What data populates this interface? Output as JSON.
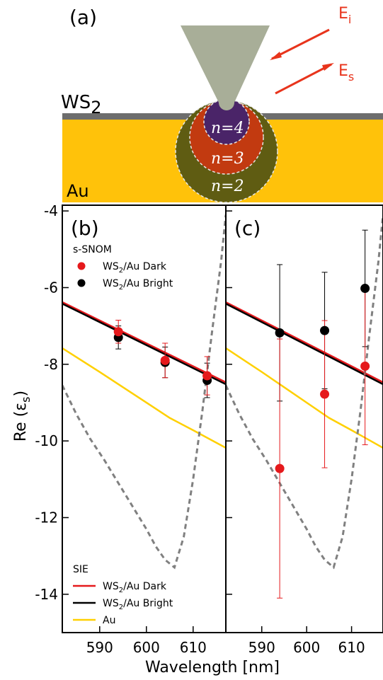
{
  "colors": {
    "dark": "#e5191c",
    "bright": "#000000",
    "au_line": "#ffd000",
    "dashed": "#808080",
    "gold": "#ffc20a",
    "ws2_layer": "#6d6d6d",
    "tip": "#a8ae98",
    "incident": "#e8341c"
  },
  "schematic": {
    "panel_label": "(a)",
    "ws2_label": "WS",
    "ws2_sub": "2",
    "au_label": "Au",
    "ei_label": "E",
    "ei_sub": "i",
    "es_label": "E",
    "es_sub": "s",
    "regions": [
      {
        "label": "n=4",
        "color": "#4a2468"
      },
      {
        "label": "n=3",
        "color": "#c23a10"
      },
      {
        "label": "n=2",
        "color": "#5f5c12"
      }
    ]
  },
  "chart_data": [
    {
      "panel": "(b)",
      "type": "line",
      "xlabel": "Wavelength [nm]",
      "ylabel": "Re (εs)",
      "ylabel_main": "Re (ε",
      "ylabel_sub": "s",
      "ylabel_close": ")",
      "xlim": [
        582,
        617
      ],
      "ylim": [
        -15,
        -3.85
      ],
      "xticks": [
        590,
        600,
        610
      ],
      "yticks": [
        -4,
        -6,
        -8,
        -10,
        -12,
        -14
      ],
      "lines": [
        {
          "name": "WS2/Au Dark",
          "color": "#e5191c",
          "x": [
            582,
            617
          ],
          "y": [
            -6.38,
            -8.47
          ]
        },
        {
          "name": "WS2/Au Bright",
          "color": "#000000",
          "x": [
            582,
            617
          ],
          "y": [
            -6.42,
            -8.52
          ]
        },
        {
          "name": "Au",
          "color": "#ffd000",
          "x": [
            582,
            590,
            595,
            600,
            605,
            610,
            617
          ],
          "y": [
            -7.58,
            -8.2,
            -8.6,
            -9.0,
            -9.4,
            -9.72,
            -10.18
          ]
        },
        {
          "name": "dashed",
          "color": "#808080",
          "dashed": true,
          "x": [
            582,
            585,
            588,
            591,
            594,
            597,
            600,
            602,
            604,
            605,
            606,
            608,
            610,
            612,
            614,
            616,
            617
          ],
          "y": [
            -8.55,
            -9.3,
            -9.95,
            -10.5,
            -11.1,
            -11.7,
            -12.3,
            -12.75,
            -13.1,
            -13.2,
            -13.3,
            -12.5,
            -11.0,
            -9.2,
            -7.2,
            -5.3,
            -4.1
          ]
        }
      ],
      "points": [
        {
          "series": "WS2/Au Bright",
          "color": "#000000",
          "x": [
            594,
            604,
            613
          ],
          "y": [
            -7.3,
            -7.95,
            -8.42
          ],
          "err": [
            0.3,
            0.4,
            0.45
          ]
        },
        {
          "series": "WS2/Au Dark",
          "color": "#e5191c",
          "x": [
            594,
            604,
            613
          ],
          "y": [
            -7.15,
            -7.9,
            -8.3
          ],
          "err": [
            0.3,
            0.45,
            0.5
          ]
        }
      ],
      "legend_top": {
        "title": "s-SNOM",
        "items": [
          {
            "text": "WS",
            "sub": "2",
            "rest": "/Au Dark",
            "color": "#e5191c"
          },
          {
            "text": "WS",
            "sub": "2",
            "rest": "/Au Bright",
            "color": "#000000"
          }
        ]
      },
      "legend_bottom": {
        "title": "SIE",
        "items": [
          {
            "text": "WS",
            "sub": "2",
            "rest": "/Au Dark",
            "color": "#e5191c"
          },
          {
            "text": "WS",
            "sub": "2",
            "rest": "/Au Bright",
            "color": "#000000"
          },
          {
            "text": "Au",
            "sub": "",
            "rest": "",
            "color": "#ffd000"
          }
        ]
      }
    },
    {
      "panel": "(c)",
      "type": "line",
      "xlim": [
        582,
        617
      ],
      "ylim": [
        -15,
        -3.85
      ],
      "xticks": [
        590,
        600,
        610
      ],
      "lines": [
        {
          "name": "WS2/Au Dark",
          "color": "#e5191c",
          "x": [
            582,
            617
          ],
          "y": [
            -6.38,
            -8.47
          ]
        },
        {
          "name": "WS2/Au Bright",
          "color": "#000000",
          "x": [
            582,
            617
          ],
          "y": [
            -6.42,
            -8.52
          ]
        },
        {
          "name": "Au",
          "color": "#ffd000",
          "x": [
            582,
            590,
            595,
            600,
            605,
            610,
            617
          ],
          "y": [
            -7.58,
            -8.2,
            -8.6,
            -9.0,
            -9.4,
            -9.72,
            -10.18
          ]
        },
        {
          "name": "dashed",
          "color": "#808080",
          "dashed": true,
          "x": [
            582,
            585,
            588,
            591,
            594,
            597,
            600,
            602,
            604,
            605,
            606,
            608,
            610,
            612,
            614,
            616,
            617
          ],
          "y": [
            -8.55,
            -9.3,
            -9.95,
            -10.5,
            -11.1,
            -11.7,
            -12.3,
            -12.75,
            -13.1,
            -13.2,
            -13.3,
            -12.5,
            -11.0,
            -9.2,
            -7.2,
            -5.3,
            -4.1
          ]
        }
      ],
      "points": [
        {
          "series": "WS2/Au Bright",
          "color": "#000000",
          "x": [
            594,
            604,
            613
          ],
          "y": [
            -7.18,
            -7.12,
            -6.02
          ],
          "err": [
            1.78,
            1.52,
            1.52
          ]
        },
        {
          "series": "WS2/Au Dark",
          "color": "#e5191c",
          "x": [
            594,
            604,
            613
          ],
          "y": [
            -10.72,
            -8.78,
            -8.05
          ],
          "err": [
            3.38,
            1.92,
            2.05
          ]
        }
      ]
    }
  ]
}
